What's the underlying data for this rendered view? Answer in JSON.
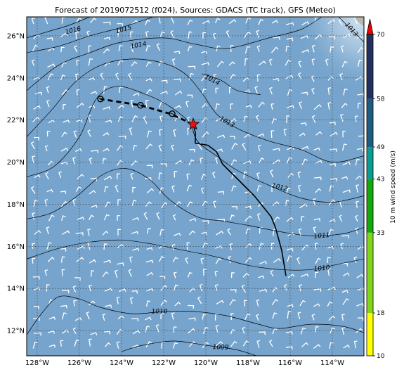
{
  "title": "Forecast of 2019072512 (f024), Sources: GDACS (TC track), GFS (Meteo)",
  "map": {
    "lon_range": [
      -128.5,
      -112.5
    ],
    "lat_range": [
      10.8,
      26.9
    ],
    "lon_ticks": [
      "128°W",
      "126°W",
      "124°W",
      "122°W",
      "120°W",
      "118°W",
      "116°W",
      "114°W"
    ],
    "lat_ticks": [
      "12°N",
      "14°N",
      "16°N",
      "18°N",
      "20°N",
      "22°N",
      "24°N",
      "26°N"
    ],
    "grid": "dotted",
    "ocean_color": "#76a4cc",
    "land_color": "#b8b8a8"
  },
  "isobars": [
    {
      "label": "1016",
      "points": [
        [
          -128.5,
          25.9
        ],
        [
          -127.5,
          26.2
        ],
        [
          -126.5,
          26.5
        ],
        [
          -125.5,
          26.9
        ]
      ]
    },
    {
      "label": "1015",
      "points": [
        [
          -128.5,
          25.2
        ],
        [
          -127,
          25.5
        ],
        [
          -125.5,
          26.0
        ],
        [
          -124,
          26.4
        ],
        [
          -122.5,
          26.9
        ]
      ]
    },
    {
      "label": "1014",
      "points": [
        [
          -128.5,
          23.4
        ],
        [
          -127,
          24.6
        ],
        [
          -125.5,
          25.2
        ],
        [
          -124,
          25.7
        ],
        [
          -122,
          25.9
        ],
        [
          -120.5,
          25.6
        ],
        [
          -119,
          25.4
        ],
        [
          -117,
          25.9
        ],
        [
          -115.5,
          26.3
        ],
        [
          -114.5,
          26.9
        ]
      ]
    },
    {
      "label": "1014",
      "points": [
        [
          -120.2,
          24.2
        ],
        [
          -119.3,
          23.9
        ],
        [
          -118.5,
          23.4
        ],
        [
          -117.4,
          23.2
        ]
      ]
    },
    {
      "label": "1013",
      "points": [
        [
          -128.5,
          21.2
        ],
        [
          -127.3,
          22.5
        ],
        [
          -126.2,
          23.8
        ],
        [
          -125,
          24.6
        ],
        [
          -123.5,
          24.9
        ],
        [
          -122,
          24.7
        ],
        [
          -121,
          24.2
        ],
        [
          -120.2,
          23.3
        ],
        [
          -119.5,
          22.3
        ],
        [
          -118.5,
          21.6
        ],
        [
          -117,
          21.0
        ],
        [
          -115.5,
          20.6
        ],
        [
          -114,
          20.0
        ],
        [
          -112.5,
          20.3
        ]
      ]
    },
    {
      "label": "1013",
      "points": [
        [
          -113.7,
          26.9
        ],
        [
          -113.2,
          26.4
        ],
        [
          -112.5,
          25.7
        ]
      ]
    },
    {
      "label": "1012",
      "points": [
        [
          -128.5,
          19.3
        ],
        [
          -127.2,
          19.8
        ],
        [
          -126,
          21.2
        ],
        [
          -125.2,
          23.0
        ],
        [
          -124.2,
          23.6
        ],
        [
          -122.8,
          23.2
        ],
        [
          -121.8,
          22.7
        ],
        [
          -120.8,
          21.9
        ],
        [
          -120.4,
          21.0
        ],
        [
          -119.5,
          20.3
        ],
        [
          -118.5,
          19.6
        ],
        [
          -117,
          18.9
        ],
        [
          -115.5,
          18.3
        ],
        [
          -114,
          18.1
        ],
        [
          -112.5,
          18.4
        ]
      ]
    },
    {
      "label": "1011",
      "points": [
        [
          -128.5,
          17.3
        ],
        [
          -127.3,
          17.6
        ],
        [
          -126.1,
          18.4
        ],
        [
          -124.9,
          19.4
        ],
        [
          -123.8,
          19.7
        ],
        [
          -122.7,
          19.2
        ],
        [
          -121.7,
          18.2
        ],
        [
          -120.4,
          17.4
        ],
        [
          -119.2,
          17.2
        ],
        [
          -118,
          17.0
        ],
        [
          -116.5,
          16.7
        ],
        [
          -115,
          16.5
        ],
        [
          -113.5,
          16.6
        ],
        [
          -112.5,
          16.9
        ]
      ]
    },
    {
      "label": "1010",
      "points": [
        [
          -128.5,
          15.4
        ],
        [
          -127,
          15.9
        ],
        [
          -125.5,
          16.2
        ],
        [
          -124,
          16.3
        ],
        [
          -122.5,
          16.1
        ],
        [
          -121,
          15.8
        ],
        [
          -119.5,
          15.5
        ],
        [
          -118,
          15.1
        ],
        [
          -116.5,
          14.9
        ],
        [
          -115,
          14.9
        ],
        [
          -113.5,
          15.2
        ],
        [
          -112.5,
          15.4
        ]
      ]
    },
    {
      "label": "1010",
      "points": [
        [
          -128.5,
          11.8
        ],
        [
          -127.8,
          12.8
        ],
        [
          -127,
          13.6
        ],
        [
          -126,
          13.5
        ],
        [
          -125,
          13.1
        ],
        [
          -123.5,
          12.8
        ],
        [
          -122,
          12.9
        ],
        [
          -120.5,
          12.9
        ],
        [
          -119,
          12.7
        ],
        [
          -117.5,
          12.3
        ],
        [
          -116.5,
          12.1
        ],
        [
          -115,
          12.3
        ],
        [
          -113.5,
          12.2
        ],
        [
          -112.5,
          11.9
        ]
      ]
    },
    {
      "label": "1009",
      "points": [
        [
          -124,
          11.0
        ],
        [
          -123,
          11.3
        ],
        [
          -121.5,
          11.5
        ],
        [
          -120,
          11.3
        ],
        [
          -118.6,
          11.1
        ],
        [
          -117.6,
          10.8
        ]
      ]
    }
  ],
  "isobar_labels": [
    {
      "text": "1016",
      "lon": -126.3,
      "lat": 26.25,
      "rot": -14
    },
    {
      "text": "1015",
      "lon": -123.9,
      "lat": 26.3,
      "rot": -16
    },
    {
      "text": "1014",
      "lon": -123.2,
      "lat": 25.55,
      "rot": -10
    },
    {
      "text": "1014",
      "lon": -119.7,
      "lat": 23.9,
      "rot": 28
    },
    {
      "text": "1013",
      "lon": -119.0,
      "lat": 21.9,
      "rot": 30
    },
    {
      "text": "1013",
      "lon": -113.1,
      "lat": 26.3,
      "rot": 48
    },
    {
      "text": "1012",
      "lon": -116.5,
      "lat": 18.8,
      "rot": 14
    },
    {
      "text": "1011",
      "lon": -114.5,
      "lat": 16.5,
      "rot": -5
    },
    {
      "text": "1010",
      "lon": -114.5,
      "lat": 14.95,
      "rot": -6
    },
    {
      "text": "1010",
      "lon": -122.2,
      "lat": 12.9,
      "rot": 0
    },
    {
      "text": "1009",
      "lon": -119.3,
      "lat": 11.2,
      "rot": 2
    }
  ],
  "tc_track": {
    "past": [
      [
        -116.2,
        14.6
      ],
      [
        -116.4,
        15.8
      ],
      [
        -116.7,
        16.9
      ],
      [
        -116.9,
        17.4
      ],
      [
        -117.3,
        17.9
      ],
      [
        -117.7,
        18.4
      ],
      [
        -118.2,
        18.9
      ],
      [
        -118.7,
        19.4
      ],
      [
        -119.2,
        19.9
      ],
      [
        -119.5,
        20.5
      ],
      [
        -119.9,
        20.8
      ],
      [
        -120.5,
        20.9
      ],
      [
        -120.5,
        21.4
      ],
      [
        -120.6,
        21.8
      ]
    ],
    "forecast": [
      [
        -120.6,
        21.8
      ],
      [
        -121.7,
        22.3
      ],
      [
        -123.1,
        22.7
      ],
      [
        -125.0,
        23.0
      ]
    ],
    "forecast_points": [
      [
        -121.6,
        22.3
      ],
      [
        -123.1,
        22.7
      ],
      [
        -125.0,
        23.0
      ]
    ],
    "current": [
      -120.6,
      21.8
    ],
    "current_color": "#ee1111"
  },
  "colorbar": {
    "label": "10 m wind speed (m/s)",
    "ticks": [
      "10",
      "18",
      "33",
      "43",
      "49",
      "58",
      "70"
    ],
    "colors": [
      "#ffff00",
      "#7fd61a",
      "#12a80e",
      "#0b9c93",
      "#1c5c80",
      "#22305e"
    ],
    "extend_color": "#ee0000"
  }
}
